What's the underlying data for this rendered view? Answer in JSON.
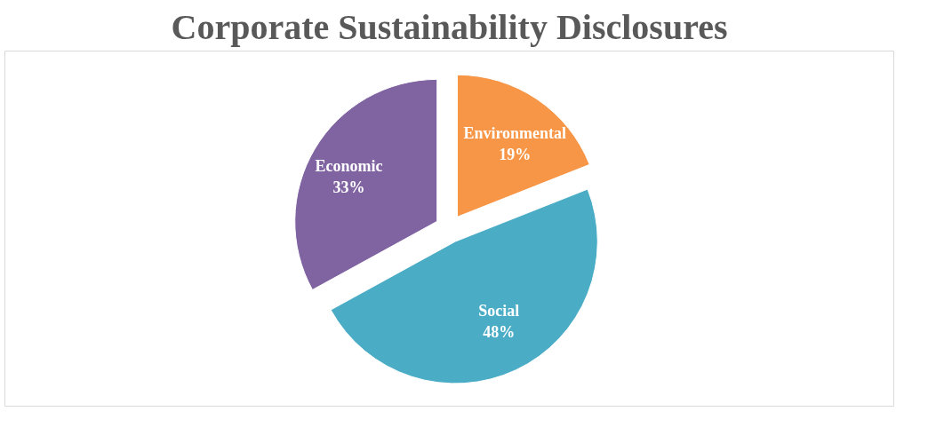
{
  "chart_data": {
    "type": "pie",
    "title": "Corporate Sustainability Disclosures",
    "categories": [
      "Environmental",
      "Social",
      "Economic"
    ],
    "values": [
      19,
      48,
      33
    ],
    "colors": [
      "#f79646",
      "#4bacc6",
      "#8064a2"
    ],
    "value_labels": [
      "19%",
      "48%",
      "33%"
    ]
  }
}
